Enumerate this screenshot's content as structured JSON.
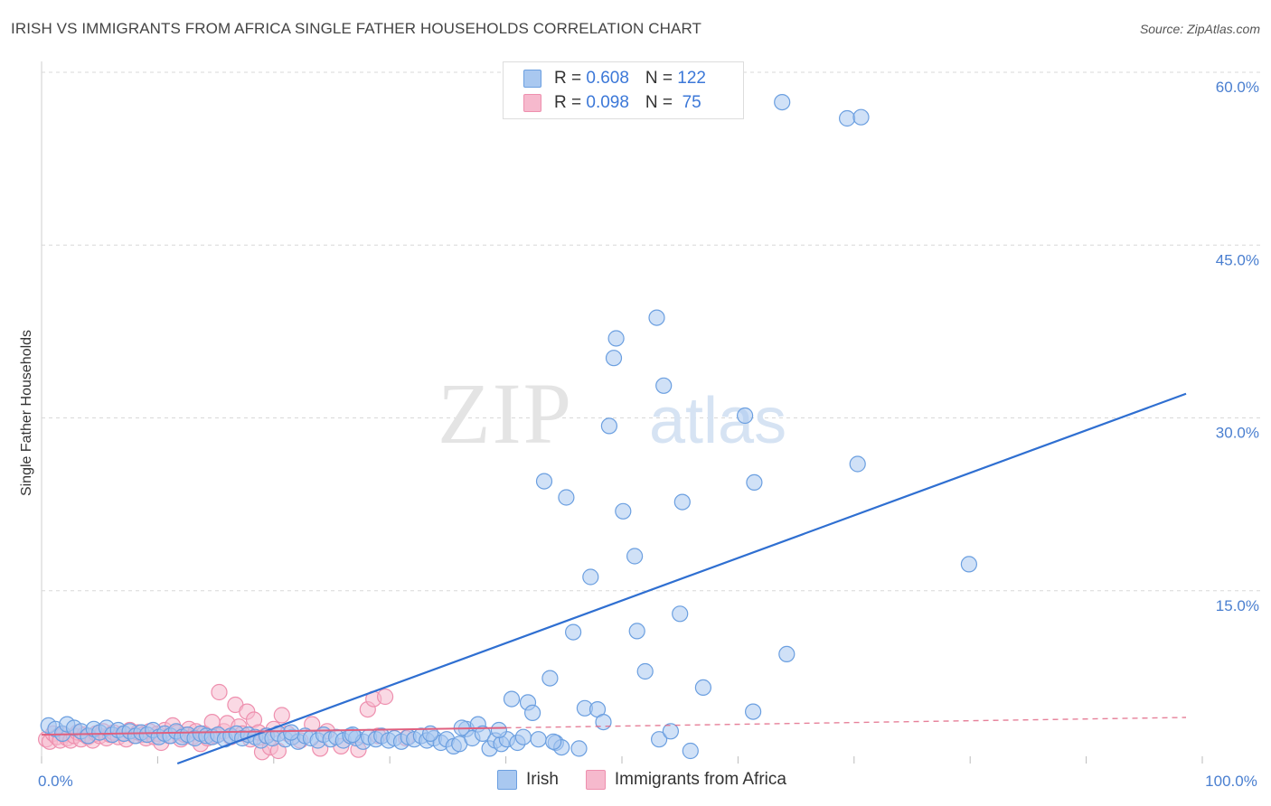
{
  "header": {
    "title": "IRISH VS IMMIGRANTS FROM AFRICA SINGLE FATHER HOUSEHOLDS CORRELATION CHART",
    "source": "Source: ZipAtlas.com"
  },
  "watermark": {
    "zip": "ZIP",
    "atlas": "atlas"
  },
  "legend": {
    "irish": {
      "r_label": "R = ",
      "r": "0.608",
      "n_label": "N = ",
      "n": "122"
    },
    "africa": {
      "r_label": "R = ",
      "r": "0.098",
      "n_label": "N = ",
      "n": " 75"
    }
  },
  "bottom_legend": {
    "irish": "Irish",
    "africa": "Immigrants from Africa"
  },
  "colors": {
    "irish_fill": "#a9c8f0",
    "irish_stroke": "#6b9fe0",
    "irish_line": "#2f6fd1",
    "africa_fill": "#f6b9cd",
    "africa_stroke": "#ee8fae",
    "africa_line": "#e0607f",
    "grid": "#d8d8d8",
    "axis_text": "#4a7fd0"
  },
  "chart_data": {
    "type": "scatter",
    "title": "IRISH VS IMMIGRANTS FROM AFRICA SINGLE FATHER HOUSEHOLDS CORRELATION CHART",
    "xlabel": "",
    "ylabel": "Single Father Households",
    "xlim": [
      0,
      100
    ],
    "ylim": [
      0,
      60
    ],
    "y_ticks": [
      {
        "v": 15,
        "label": "15.0%"
      },
      {
        "v": 30,
        "label": "30.0%"
      },
      {
        "v": 45,
        "label": "45.0%"
      },
      {
        "v": 60,
        "label": "60.0%"
      }
    ],
    "x_ticks": [
      {
        "v": 0,
        "label": "0.0%"
      },
      {
        "v": 100,
        "label": "100.0%"
      }
    ],
    "series": [
      {
        "name": "Irish",
        "r": 0.608,
        "n": 122,
        "trend": {
          "x0": 11.7,
          "y0": 0.0,
          "x1": 98.6,
          "y1": 32.1
        },
        "points": [
          [
            0.6,
            3.3
          ],
          [
            1.2,
            3.0
          ],
          [
            1.8,
            2.6
          ],
          [
            2.2,
            3.4
          ],
          [
            2.8,
            3.1
          ],
          [
            3.4,
            2.8
          ],
          [
            4.0,
            2.4
          ],
          [
            4.5,
            3.0
          ],
          [
            5.0,
            2.7
          ],
          [
            5.6,
            3.1
          ],
          [
            6.1,
            2.5
          ],
          [
            6.6,
            2.9
          ],
          [
            7.1,
            2.6
          ],
          [
            7.6,
            2.8
          ],
          [
            8.1,
            2.4
          ],
          [
            8.6,
            2.7
          ],
          [
            9.1,
            2.5
          ],
          [
            9.6,
            2.9
          ],
          [
            10.1,
            2.3
          ],
          [
            10.6,
            2.6
          ],
          [
            11.1,
            2.4
          ],
          [
            11.6,
            2.8
          ],
          [
            12.1,
            2.3
          ],
          [
            12.6,
            2.5
          ],
          [
            13.2,
            2.2
          ],
          [
            13.7,
            2.6
          ],
          [
            14.2,
            2.4
          ],
          [
            14.7,
            2.3
          ],
          [
            15.2,
            2.5
          ],
          [
            15.8,
            2.1
          ],
          [
            16.3,
            2.4
          ],
          [
            16.8,
            2.6
          ],
          [
            17.3,
            2.2
          ],
          [
            17.8,
            2.5
          ],
          [
            18.4,
            2.3
          ],
          [
            18.9,
            2.0
          ],
          [
            19.4,
            2.4
          ],
          [
            19.9,
            2.2
          ],
          [
            20.4,
            2.6
          ],
          [
            21.0,
            2.1
          ],
          [
            21.6,
            2.3
          ],
          [
            22.1,
            1.9
          ],
          [
            22.7,
            2.4
          ],
          [
            23.2,
            2.2
          ],
          [
            23.8,
            2.0
          ],
          [
            24.3,
            2.5
          ],
          [
            24.9,
            2.1
          ],
          [
            25.4,
            2.3
          ],
          [
            26.0,
            2.0
          ],
          [
            26.6,
            2.4
          ],
          [
            27.1,
            2.2
          ],
          [
            27.7,
            1.9
          ],
          [
            28.2,
            2.3
          ],
          [
            28.8,
            2.1
          ],
          [
            29.3,
            2.4
          ],
          [
            29.9,
            2.0
          ],
          [
            30.4,
            2.2
          ],
          [
            31.0,
            1.9
          ],
          [
            31.6,
            2.3
          ],
          [
            32.1,
            2.1
          ],
          [
            32.7,
            2.4
          ],
          [
            33.2,
            2.0
          ],
          [
            33.8,
            2.2
          ],
          [
            34.4,
            1.8
          ],
          [
            34.9,
            2.1
          ],
          [
            35.5,
            1.5
          ],
          [
            36.0,
            1.7
          ],
          [
            36.6,
            3.0
          ],
          [
            37.1,
            2.2
          ],
          [
            37.6,
            3.4
          ],
          [
            38.0,
            2.6
          ],
          [
            38.6,
            1.3
          ],
          [
            39.1,
            2.0
          ],
          [
            39.6,
            1.7
          ],
          [
            40.1,
            2.1
          ],
          [
            40.5,
            5.6
          ],
          [
            41.0,
            1.8
          ],
          [
            41.5,
            2.3
          ],
          [
            41.9,
            5.3
          ],
          [
            42.3,
            4.4
          ],
          [
            42.8,
            2.1
          ],
          [
            43.3,
            24.5
          ],
          [
            43.8,
            7.4
          ],
          [
            44.3,
            1.8
          ],
          [
            44.8,
            1.4
          ],
          [
            45.2,
            23.1
          ],
          [
            45.8,
            11.4
          ],
          [
            46.3,
            1.3
          ],
          [
            46.8,
            4.8
          ],
          [
            47.3,
            16.2
          ],
          [
            47.9,
            4.7
          ],
          [
            48.4,
            3.6
          ],
          [
            48.9,
            29.3
          ],
          [
            49.3,
            35.2
          ],
          [
            49.5,
            36.9
          ],
          [
            50.1,
            21.9
          ],
          [
            51.1,
            18.0
          ],
          [
            51.3,
            11.5
          ],
          [
            52.0,
            8.0
          ],
          [
            53.0,
            38.7
          ],
          [
            53.2,
            2.1
          ],
          [
            53.6,
            32.8
          ],
          [
            54.2,
            2.8
          ],
          [
            55.0,
            13.0
          ],
          [
            55.2,
            22.7
          ],
          [
            55.9,
            1.1
          ],
          [
            57.0,
            6.6
          ],
          [
            60.6,
            30.2
          ],
          [
            61.4,
            24.4
          ],
          [
            61.3,
            4.5
          ],
          [
            64.2,
            9.5
          ],
          [
            63.8,
            57.4
          ],
          [
            69.4,
            56.0
          ],
          [
            70.6,
            56.1
          ],
          [
            70.3,
            26.0
          ],
          [
            79.9,
            17.3
          ],
          [
            21.5,
            2.7
          ],
          [
            26.8,
            2.5
          ],
          [
            33.5,
            2.6
          ],
          [
            36.2,
            3.1
          ],
          [
            39.4,
            2.9
          ],
          [
            44.1,
            1.9
          ]
        ]
      },
      {
        "name": "Immigrants from Africa",
        "r": 0.098,
        "n": 75,
        "trend": {
          "x0": 0.0,
          "y0": 2.5,
          "x1": 40.0,
          "y1": 3.1
        },
        "trend_dashed": {
          "x0": 40.0,
          "y0": 3.1,
          "x1": 98.6,
          "y1": 4.0
        },
        "points": [
          [
            0.4,
            2.1
          ],
          [
            0.7,
            1.9
          ],
          [
            1.0,
            2.6
          ],
          [
            1.3,
            2.3
          ],
          [
            1.6,
            2.0
          ],
          [
            1.9,
            2.5
          ],
          [
            2.2,
            2.2
          ],
          [
            2.5,
            2.0
          ],
          [
            2.8,
            2.4
          ],
          [
            3.1,
            2.7
          ],
          [
            3.4,
            2.1
          ],
          [
            3.7,
            2.5
          ],
          [
            4.0,
            2.3
          ],
          [
            4.4,
            2.0
          ],
          [
            4.7,
            2.6
          ],
          [
            5.0,
            2.4
          ],
          [
            5.3,
            2.8
          ],
          [
            5.6,
            2.2
          ],
          [
            5.9,
            2.5
          ],
          [
            6.2,
            2.7
          ],
          [
            6.6,
            2.3
          ],
          [
            7.0,
            2.6
          ],
          [
            7.3,
            2.1
          ],
          [
            7.6,
            2.9
          ],
          [
            8.0,
            2.4
          ],
          [
            8.3,
            2.7
          ],
          [
            8.7,
            2.5
          ],
          [
            9.0,
            2.2
          ],
          [
            9.3,
            2.8
          ],
          [
            9.7,
            2.3
          ],
          [
            10.0,
            2.6
          ],
          [
            10.3,
            1.8
          ],
          [
            10.6,
            2.9
          ],
          [
            11.0,
            2.4
          ],
          [
            11.3,
            3.3
          ],
          [
            11.7,
            2.7
          ],
          [
            12.0,
            2.1
          ],
          [
            12.3,
            2.5
          ],
          [
            12.7,
            3.0
          ],
          [
            13.0,
            2.3
          ],
          [
            13.3,
            2.8
          ],
          [
            13.7,
            1.7
          ],
          [
            14.0,
            2.6
          ],
          [
            14.3,
            2.2
          ],
          [
            14.7,
            3.6
          ],
          [
            15.0,
            2.4
          ],
          [
            15.3,
            6.2
          ],
          [
            15.7,
            2.8
          ],
          [
            16.0,
            3.5
          ],
          [
            16.3,
            2.3
          ],
          [
            16.7,
            5.1
          ],
          [
            17.0,
            3.2
          ],
          [
            17.3,
            2.6
          ],
          [
            17.7,
            4.5
          ],
          [
            18.0,
            2.1
          ],
          [
            18.3,
            3.8
          ],
          [
            18.7,
            2.7
          ],
          [
            19.0,
            1.0
          ],
          [
            19.3,
            2.4
          ],
          [
            19.7,
            1.4
          ],
          [
            20.0,
            3.0
          ],
          [
            20.4,
            1.1
          ],
          [
            20.7,
            4.2
          ],
          [
            21.2,
            2.6
          ],
          [
            22.3,
            2.0
          ],
          [
            23.3,
            3.4
          ],
          [
            24.0,
            1.3
          ],
          [
            25.8,
            1.5
          ],
          [
            27.3,
            1.2
          ],
          [
            28.1,
            4.7
          ],
          [
            28.6,
            5.6
          ],
          [
            29.6,
            5.8
          ],
          [
            31.4,
            2.2
          ],
          [
            29.0,
            2.4
          ],
          [
            24.6,
            2.8
          ]
        ]
      }
    ]
  }
}
